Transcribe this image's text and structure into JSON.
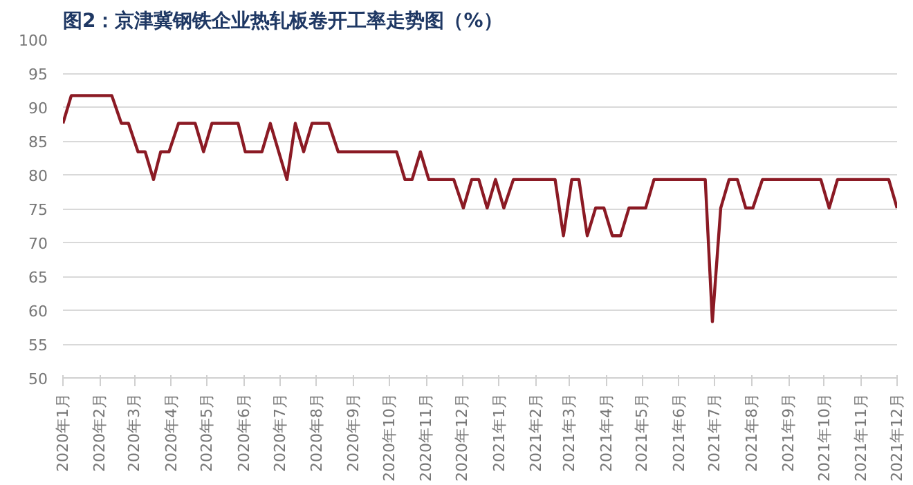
{
  "chart_data": {
    "type": "line",
    "title": "图2：京津冀钢铁企业热轧板卷开工率走势图（%）",
    "x": [
      "2020-01-01",
      "2020-01-08",
      "2020-02-11",
      "2020-02-19",
      "2020-02-25",
      "2020-03-04",
      "2020-03-10",
      "2020-03-17",
      "2020-03-23",
      "2020-03-30",
      "2020-04-07",
      "2020-04-21",
      "2020-04-28",
      "2020-05-05",
      "2020-05-27",
      "2020-06-02",
      "2020-06-16",
      "2020-06-23",
      "2020-07-07",
      "2020-07-14",
      "2020-07-21",
      "2020-07-28",
      "2020-08-11",
      "2020-08-19",
      "2020-10-07",
      "2020-10-14",
      "2020-10-20",
      "2020-10-27",
      "2020-11-03",
      "2020-11-24",
      "2020-12-02",
      "2020-12-09",
      "2020-12-15",
      "2020-12-22",
      "2020-12-29",
      "2021-01-05",
      "2021-01-13",
      "2021-02-17",
      "2021-02-24",
      "2021-03-03",
      "2021-03-09",
      "2021-03-16",
      "2021-03-23",
      "2021-03-30",
      "2021-04-06",
      "2021-04-13",
      "2021-04-20",
      "2021-05-04",
      "2021-05-11",
      "2021-06-23",
      "2021-06-29",
      "2021-07-06",
      "2021-07-13",
      "2021-07-20",
      "2021-07-27",
      "2021-08-02",
      "2021-08-10",
      "2021-09-28",
      "2021-10-05",
      "2021-10-12",
      "2021-11-24",
      "2021-12-01"
    ],
    "series": [
      {
        "color": "#8b1a24",
        "values": [
          87.6,
          91.7,
          91.7,
          87.6,
          87.6,
          83.4,
          83.4,
          79.3,
          83.4,
          83.4,
          87.6,
          87.6,
          83.4,
          87.6,
          87.6,
          83.4,
          83.4,
          87.6,
          79.3,
          87.6,
          83.4,
          87.6,
          87.6,
          83.4,
          83.4,
          79.3,
          79.3,
          83.4,
          79.3,
          79.3,
          75.1,
          79.3,
          79.3,
          75.1,
          79.3,
          75.1,
          79.3,
          79.3,
          71.0,
          79.3,
          79.3,
          71.0,
          75.1,
          75.1,
          71.0,
          71.0,
          75.1,
          75.1,
          79.3,
          79.3,
          58.3,
          75.1,
          79.3,
          79.3,
          75.1,
          75.1,
          79.3,
          79.3,
          75.1,
          79.3,
          79.3,
          75.1
        ]
      }
    ],
    "xlim": [
      "2020-01-01",
      "2021-12-01"
    ],
    "xticks": [
      {
        "value": "2020-01-01",
        "label": "2020年1月"
      },
      {
        "value": "2020-02-01",
        "label": "2020年2月"
      },
      {
        "value": "2020-03-01",
        "label": "2020年3月"
      },
      {
        "value": "2020-04-01",
        "label": "2020年4月"
      },
      {
        "value": "2020-05-01",
        "label": "2020年5月"
      },
      {
        "value": "2020-06-01",
        "label": "2020年6月"
      },
      {
        "value": "2020-07-01",
        "label": "2020年7月"
      },
      {
        "value": "2020-08-01",
        "label": "2020年8月"
      },
      {
        "value": "2020-09-01",
        "label": "2020年9月"
      },
      {
        "value": "2020-10-01",
        "label": "2020年10月"
      },
      {
        "value": "2020-11-01",
        "label": "2020年11月"
      },
      {
        "value": "2020-12-01",
        "label": "2020年12月"
      },
      {
        "value": "2021-01-01",
        "label": "2021年1月"
      },
      {
        "value": "2021-02-01",
        "label": "2021年2月"
      },
      {
        "value": "2021-03-01",
        "label": "2021年3月"
      },
      {
        "value": "2021-04-01",
        "label": "2021年4月"
      },
      {
        "value": "2021-05-01",
        "label": "2021年5月"
      },
      {
        "value": "2021-06-01",
        "label": "2021年6月"
      },
      {
        "value": "2021-07-01",
        "label": "2021年7月"
      },
      {
        "value": "2021-08-01",
        "label": "2021年8月"
      },
      {
        "value": "2021-09-01",
        "label": "2021年9月"
      },
      {
        "value": "2021-10-01",
        "label": "2021年10月"
      },
      {
        "value": "2021-11-01",
        "label": "2021年11月"
      },
      {
        "value": "2021-12-01",
        "label": "2021年12月"
      }
    ],
    "ylim": [
      50,
      100
    ],
    "yticks": [
      50,
      55,
      60,
      65,
      70,
      75,
      80,
      85,
      90,
      95,
      100
    ],
    "grid": "y",
    "line_style": "solid"
  }
}
